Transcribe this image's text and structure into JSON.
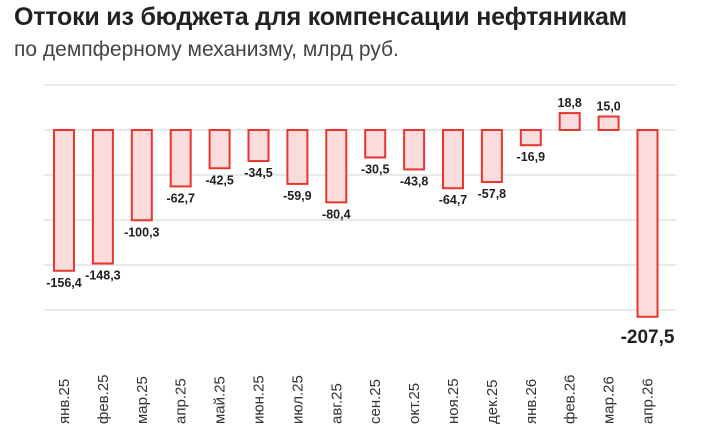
{
  "header": {
    "title": "Оттоки из бюджета для компенсации нефтяникам",
    "subtitle": "по демпферному механизму, млрд руб."
  },
  "colors": {
    "bar_fill": "#fbdcdc",
    "bar_stroke": "#e8362f",
    "grid": "#d6d6d6",
    "label": "#1f1f1f"
  },
  "chart_data": {
    "type": "bar",
    "title": "Оттоки из бюджета для компенсации нефтяникам",
    "subtitle": "по демпферному механизму, млрд руб.",
    "categories": [
      "янв.25",
      "фев.25",
      "мар.25",
      "апр.25",
      "май.25",
      "июн.25",
      "июл.25",
      "авг.25",
      "сен.25",
      "окт.25",
      "ноя.25",
      "дек.25",
      "янв.26",
      "фев.26",
      "мар.26",
      "апр.26"
    ],
    "values": [
      -156.4,
      -148.3,
      -100.3,
      -62.7,
      -42.5,
      -34.5,
      -59.9,
      -80.4,
      -30.5,
      -43.8,
      -64.7,
      -57.8,
      -16.9,
      18.8,
      15.0,
      -207.5
    ],
    "value_labels": [
      "-156,4",
      "-148,3",
      "-100,3",
      "-62,7",
      "-42,5",
      "-34,5",
      "-59,9",
      "-80,4",
      "-30,5",
      "-43,8",
      "-64,7",
      "-57,8",
      "-16,9",
      "18,8",
      "15,0",
      "-207,5"
    ],
    "highlight_index": 15,
    "xlabel": "",
    "ylabel": "",
    "ylim": [
      -220,
      50
    ],
    "gridlines": [
      50,
      0,
      -50,
      -100,
      -150,
      -200
    ],
    "grid": true,
    "legend": "none"
  }
}
